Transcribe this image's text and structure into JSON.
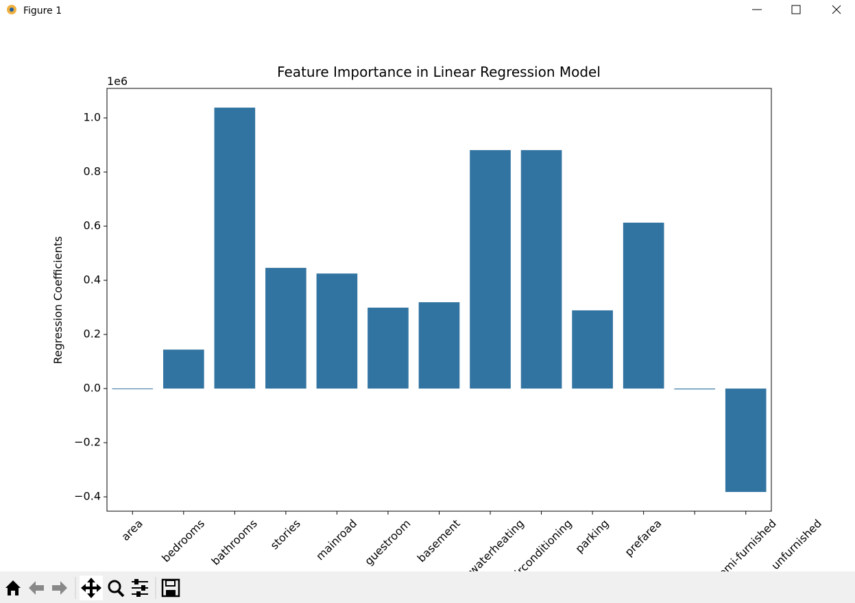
{
  "window_title": "Figure 1",
  "chart_data": {
    "type": "bar",
    "title": "Feature Importance in Linear Regression Model",
    "ylabel": "Regression Coefficients",
    "offset_label": "1e6",
    "categories": [
      "area",
      "bedrooms",
      "bathrooms",
      "stories",
      "mainroad",
      "guestroom",
      "basement",
      "hotwaterheating",
      "airconditioning",
      "parking",
      "prefarea",
      null,
      "semi-furnished"
    ],
    "overflow_labels": [
      "unfurnished"
    ],
    "values": [
      0.0002,
      0.144,
      1.038,
      0.446,
      0.425,
      0.299,
      0.319,
      0.881,
      0.881,
      0.289,
      0.613,
      -0.003,
      -0.382
    ],
    "color": "#3274a1",
    "ylim": [
      -0.453,
      1.109
    ],
    "yticks": [
      {
        "value": -0.4,
        "label": "−0.4"
      },
      {
        "value": -0.2,
        "label": "−0.2"
      },
      {
        "value": 0,
        "label": "0.0"
      },
      0.2,
      0.4,
      0.6,
      0.8,
      {
        "value": 1,
        "label": "1.0"
      }
    ],
    "grid": false
  }
}
